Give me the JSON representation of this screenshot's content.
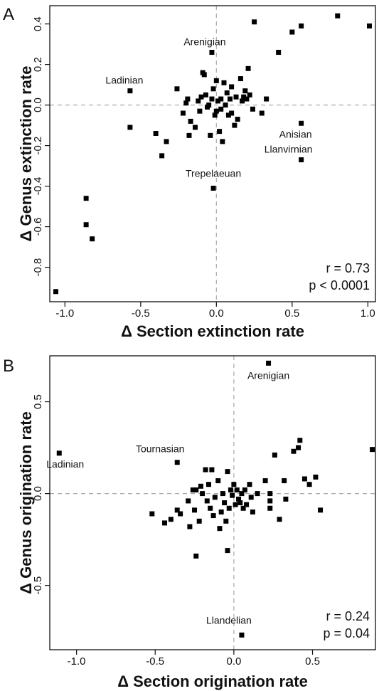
{
  "chart_data": [
    {
      "panel_label": "A",
      "type": "scatter",
      "xlabel": "Δ Section extinction rate",
      "ylabel": "Δ Genus extinction rate",
      "xlim": [
        -1.1,
        1.05
      ],
      "ylim": [
        -0.97,
        0.49
      ],
      "xticks": [
        -1.0,
        -0.5,
        0.0,
        0.5,
        1.0
      ],
      "xtick_labels": [
        "-1.0",
        "-0.5",
        "0.0",
        "0.5",
        "1.0"
      ],
      "yticks": [
        -0.8,
        -0.6,
        -0.4,
        -0.2,
        0.0,
        0.2,
        0.4
      ],
      "ytick_labels": [
        "-0.8",
        "-0.6",
        "-0.4",
        "-0.2",
        "0.0",
        "0.2",
        "0.4"
      ],
      "reference_lines": {
        "x": 0,
        "y": 0,
        "style": "dashed"
      },
      "annotations": [
        {
          "text": "Arenigian",
          "x": -0.03,
          "y": 0.26
        },
        {
          "text": "Ladinian",
          "x": -0.57,
          "y": 0.07
        },
        {
          "text": "Anisian",
          "x": 0.56,
          "y": -0.09
        },
        {
          "text": "Llanvirnian",
          "x": 0.56,
          "y": -0.27
        },
        {
          "text": "Trepelaeuan",
          "x": -0.02,
          "y": -0.41
        }
      ],
      "stats": {
        "r": "r = 0.73",
        "p": "p < 0.0001"
      },
      "points": [
        [
          -1.06,
          -0.92
        ],
        [
          -0.86,
          -0.46
        ],
        [
          -0.86,
          -0.59
        ],
        [
          -0.82,
          -0.66
        ],
        [
          -0.57,
          0.07
        ],
        [
          -0.57,
          -0.11
        ],
        [
          -0.4,
          -0.14
        ],
        [
          -0.36,
          -0.25
        ],
        [
          -0.33,
          -0.18
        ],
        [
          -0.26,
          0.08
        ],
        [
          -0.22,
          -0.04
        ],
        [
          -0.2,
          0.01
        ],
        [
          -0.19,
          0.03
        ],
        [
          -0.18,
          -0.15
        ],
        [
          -0.17,
          -0.08
        ],
        [
          -0.14,
          -0.11
        ],
        [
          -0.12,
          0.02
        ],
        [
          -0.11,
          -0.03
        ],
        [
          -0.1,
          0.04
        ],
        [
          -0.09,
          0.16
        ],
        [
          -0.08,
          0.15
        ],
        [
          -0.07,
          0.05
        ],
        [
          -0.06,
          -0.01
        ],
        [
          -0.05,
          0.0
        ],
        [
          -0.04,
          -0.15
        ],
        [
          -0.03,
          0.26
        ],
        [
          -0.03,
          0.03
        ],
        [
          -0.02,
          0.08
        ],
        [
          -0.02,
          -0.41
        ],
        [
          -0.01,
          -0.05
        ],
        [
          0.0,
          0.12
        ],
        [
          0.0,
          -0.03
        ],
        [
          0.01,
          0.02
        ],
        [
          0.02,
          -0.13
        ],
        [
          0.03,
          0.03
        ],
        [
          0.03,
          -0.02
        ],
        [
          0.04,
          -0.18
        ],
        [
          0.05,
          0.11
        ],
        [
          0.06,
          0.0
        ],
        [
          0.07,
          0.06
        ],
        [
          0.08,
          -0.05
        ],
        [
          0.09,
          0.03
        ],
        [
          0.1,
          0.09
        ],
        [
          0.1,
          -0.04
        ],
        [
          0.12,
          -0.1
        ],
        [
          0.13,
          0.04
        ],
        [
          0.14,
          -0.07
        ],
        [
          0.16,
          0.13
        ],
        [
          0.17,
          0.02
        ],
        [
          0.18,
          0.04
        ],
        [
          0.19,
          0.07
        ],
        [
          0.2,
          0.03
        ],
        [
          0.21,
          0.18
        ],
        [
          0.22,
          0.05
        ],
        [
          0.24,
          -0.02
        ],
        [
          0.25,
          0.41
        ],
        [
          0.3,
          -0.04
        ],
        [
          0.33,
          0.03
        ],
        [
          0.41,
          0.26
        ],
        [
          0.5,
          0.36
        ],
        [
          0.56,
          0.39
        ],
        [
          0.56,
          -0.09
        ],
        [
          0.56,
          -0.27
        ],
        [
          0.8,
          0.44
        ],
        [
          1.01,
          0.39
        ]
      ]
    },
    {
      "panel_label": "B",
      "type": "scatter",
      "xlabel": "Δ Section origination rate",
      "ylabel": "Δ Genus origination rate",
      "xlim": [
        -1.17,
        0.9
      ],
      "ylim": [
        -0.85,
        0.75
      ],
      "xticks": [
        -1.0,
        -0.5,
        0.0,
        0.5
      ],
      "xtick_labels": [
        "-1.0",
        "-0.5",
        "0.0",
        "0.5"
      ],
      "yticks": [
        -0.5,
        0.0,
        0.5
      ],
      "ytick_labels": [
        "-0.5",
        "0.0",
        "0.5"
      ],
      "reference_lines": {
        "x": 0,
        "y": 0,
        "style": "dashed"
      },
      "annotations": [
        {
          "text": "Arenigian",
          "x": 0.22,
          "y": 0.71
        },
        {
          "text": "Ladinian",
          "x": -1.11,
          "y": 0.22
        },
        {
          "text": "Tournasian",
          "x": -0.36,
          "y": 0.17
        },
        {
          "text": "Llandelian",
          "x": 0.05,
          "y": -0.77
        }
      ],
      "stats": {
        "r": "r = 0.24",
        "p": "p = 0.04"
      },
      "points": [
        [
          -1.11,
          0.22
        ],
        [
          -0.52,
          -0.11
        ],
        [
          -0.44,
          -0.16
        ],
        [
          -0.4,
          -0.14
        ],
        [
          -0.36,
          0.17
        ],
        [
          -0.36,
          -0.09
        ],
        [
          -0.34,
          -0.11
        ],
        [
          -0.29,
          -0.04
        ],
        [
          -0.28,
          -0.18
        ],
        [
          -0.26,
          0.02
        ],
        [
          -0.25,
          -0.09
        ],
        [
          -0.24,
          0.02
        ],
        [
          -0.24,
          -0.34
        ],
        [
          -0.22,
          -0.15
        ],
        [
          -0.21,
          0.04
        ],
        [
          -0.2,
          0.0
        ],
        [
          -0.18,
          0.13
        ],
        [
          -0.17,
          -0.04
        ],
        [
          -0.16,
          0.05
        ],
        [
          -0.15,
          -0.08
        ],
        [
          -0.14,
          0.13
        ],
        [
          -0.13,
          -0.12
        ],
        [
          -0.12,
          -0.02
        ],
        [
          -0.1,
          0.07
        ],
        [
          -0.09,
          -0.19
        ],
        [
          -0.08,
          -0.1
        ],
        [
          -0.07,
          0.0
        ],
        [
          -0.06,
          -0.05
        ],
        [
          -0.05,
          -0.15
        ],
        [
          -0.04,
          0.12
        ],
        [
          -0.04,
          -0.31
        ],
        [
          -0.03,
          -0.08
        ],
        [
          -0.02,
          0.02
        ],
        [
          -0.01,
          -0.01
        ],
        [
          0.0,
          0.05
        ],
        [
          0.01,
          -0.06
        ],
        [
          0.02,
          0.02
        ],
        [
          0.03,
          -0.03
        ],
        [
          0.04,
          -0.05
        ],
        [
          0.05,
          0.0
        ],
        [
          0.05,
          -0.77
        ],
        [
          0.06,
          -0.08
        ],
        [
          0.07,
          0.02
        ],
        [
          0.08,
          -0.06
        ],
        [
          0.1,
          0.05
        ],
        [
          0.11,
          -0.02
        ],
        [
          0.12,
          -0.1
        ],
        [
          0.15,
          0.0
        ],
        [
          0.2,
          0.07
        ],
        [
          0.22,
          0.71
        ],
        [
          0.23,
          0.0
        ],
        [
          0.23,
          -0.04
        ],
        [
          0.23,
          -0.08
        ],
        [
          0.26,
          0.21
        ],
        [
          0.29,
          -0.14
        ],
        [
          0.32,
          0.07
        ],
        [
          0.33,
          -0.03
        ],
        [
          0.38,
          0.23
        ],
        [
          0.41,
          0.25
        ],
        [
          0.42,
          0.29
        ],
        [
          0.45,
          0.08
        ],
        [
          0.48,
          0.05
        ],
        [
          0.52,
          0.09
        ],
        [
          0.55,
          -0.09
        ],
        [
          0.88,
          0.24
        ]
      ]
    }
  ]
}
